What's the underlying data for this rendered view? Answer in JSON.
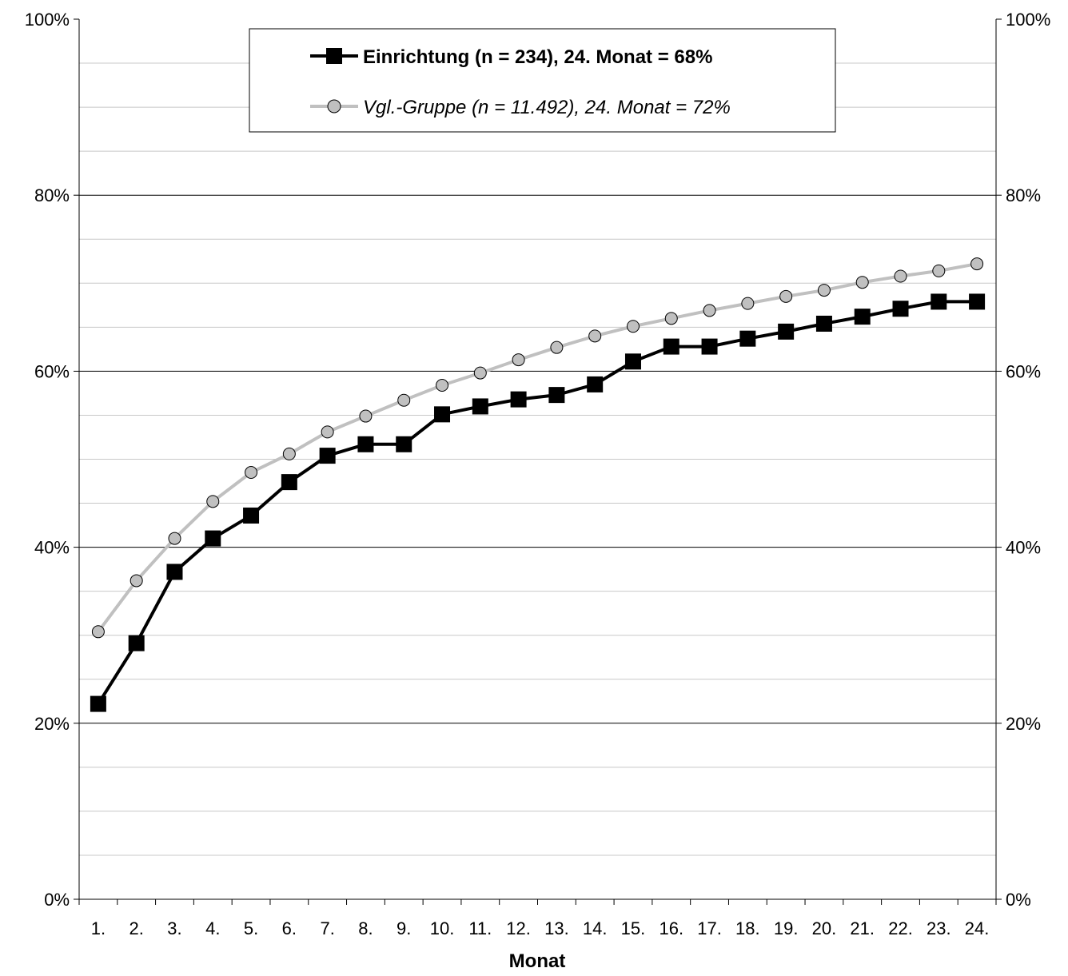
{
  "chart_data": {
    "type": "line",
    "title": "",
    "xlabel": "Monat",
    "ylabel": "",
    "ylim": [
      0,
      100
    ],
    "y_ticks": [
      "0%",
      "20%",
      "40%",
      "60%",
      "80%",
      "100%"
    ],
    "y_tick_values": [
      0,
      20,
      40,
      60,
      80,
      100
    ],
    "y_minor_step": 5,
    "grid": true,
    "secondary_y_axis": true,
    "legend_position": "top-center",
    "categories": [
      "1.",
      "2.",
      "3.",
      "4.",
      "5.",
      "6.",
      "7.",
      "8.",
      "9.",
      "10.",
      "11.",
      "12.",
      "13.",
      "14.",
      "15.",
      "16.",
      "17.",
      "18.",
      "19.",
      "20.",
      "21.",
      "22.",
      "23.",
      "24."
    ],
    "series": [
      {
        "name": "Einrichtung (n = 234), 24. Monat = 68%",
        "color": "#000000",
        "marker": "square",
        "values": [
          22.2,
          29.1,
          37.2,
          41.0,
          43.6,
          47.4,
          50.4,
          51.7,
          51.7,
          55.1,
          56.0,
          56.8,
          57.3,
          58.5,
          61.1,
          62.8,
          62.8,
          63.7,
          64.5,
          65.4,
          66.2,
          67.1,
          67.9,
          67.9
        ]
      },
      {
        "name": "Vgl.-Gruppe (n = 11.492), 24. Monat = 72%",
        "color": "#c0c0c0",
        "marker": "circle",
        "values": [
          30.4,
          36.2,
          41.0,
          45.2,
          48.5,
          50.6,
          53.1,
          54.9,
          56.7,
          58.4,
          59.8,
          61.3,
          62.7,
          64.0,
          65.1,
          66.0,
          66.9,
          67.7,
          68.5,
          69.2,
          70.1,
          70.8,
          71.4,
          72.2
        ]
      }
    ]
  }
}
